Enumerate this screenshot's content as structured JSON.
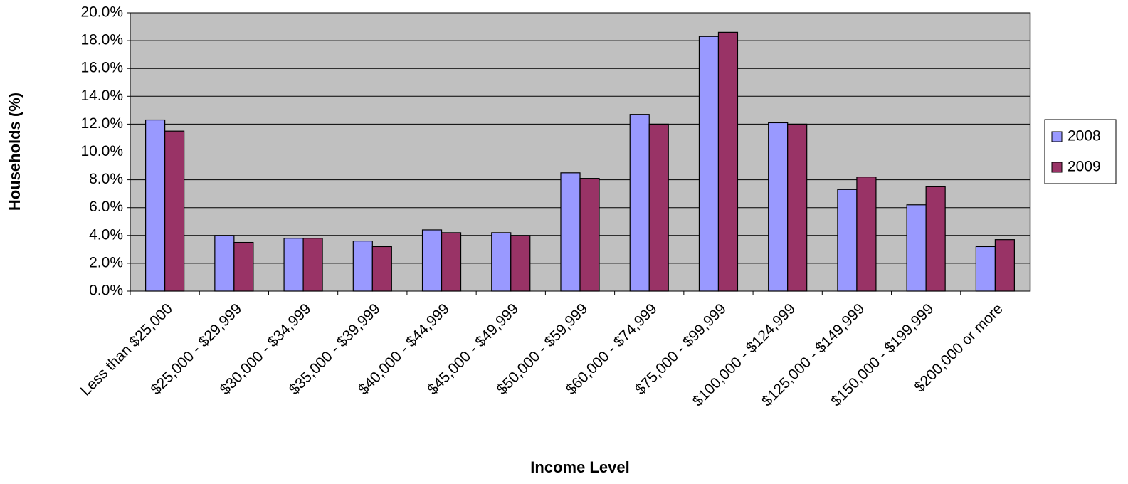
{
  "chart_data": {
    "type": "bar",
    "x_label": "Income Level",
    "y_label": "Households (%)",
    "categories": [
      "Less than $25,000",
      "$25,000 - $29,999",
      "$30,000 - $34,999",
      "$35,000 - $39,999",
      "$40,000 - $44,999",
      "$45,000 - $49,999",
      "$50,000 - $59,999",
      "$60,000 - $74,999",
      "$75,000 - $99,999",
      "$100,000 - $124,999",
      "$125,000 - $149,999",
      "$150,000 - $199,999",
      "$200,000 or more"
    ],
    "series": [
      {
        "name": "2008",
        "color": "#9999ff",
        "values": [
          12.3,
          4.0,
          3.8,
          3.6,
          4.4,
          4.2,
          8.5,
          12.7,
          18.3,
          12.1,
          7.3,
          6.2,
          3.2
        ]
      },
      {
        "name": "2009",
        "color": "#993366",
        "values": [
          11.5,
          3.5,
          3.8,
          3.2,
          4.2,
          4.0,
          8.1,
          12.0,
          18.6,
          12.0,
          8.2,
          7.5,
          3.7
        ]
      }
    ],
    "ylim": [
      0,
      20
    ],
    "yticks": [
      {
        "value": 0,
        "label": "0.0%"
      },
      {
        "value": 2,
        "label": "2.0%"
      },
      {
        "value": 4,
        "label": "4.0%"
      },
      {
        "value": 6,
        "label": "6.0%"
      },
      {
        "value": 8,
        "label": "8.0%"
      },
      {
        "value": 10,
        "label": "10.0%"
      },
      {
        "value": 12,
        "label": "12.0%"
      },
      {
        "value": 14,
        "label": "14.0%"
      },
      {
        "value": 16,
        "label": "16.0%"
      },
      {
        "value": 18,
        "label": "18.0%"
      },
      {
        "value": 20,
        "label": "20.0%"
      }
    ],
    "grid": true,
    "legend": "right"
  }
}
